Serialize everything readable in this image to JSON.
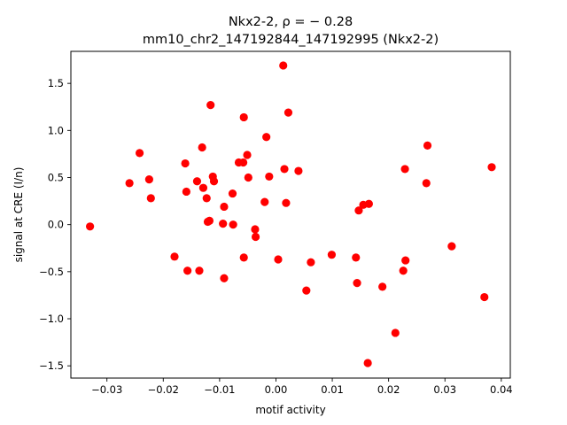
{
  "chart_data": {
    "type": "scatter",
    "title_line1": "Nkx2-2, ρ = − 0.28",
    "title_line2": "mm10_chr2_147192844_147192995 (Nkx2-2)",
    "xlabel": "motif activity",
    "ylabel": "signal at CRE (I/n)",
    "xlim": [
      -0.0364,
      0.0416
    ],
    "ylim": [
      -1.63,
      1.84
    ],
    "xticks": [
      -0.03,
      -0.02,
      -0.01,
      0.0,
      0.01,
      0.02,
      0.03,
      0.04
    ],
    "xtick_labels": [
      "−0.03",
      "−0.02",
      "−0.01",
      "0.00",
      "0.01",
      "0.02",
      "0.03",
      "0.04"
    ],
    "yticks": [
      -1.5,
      -1.0,
      -0.5,
      0.0,
      0.5,
      1.0,
      1.5
    ],
    "ytick_labels": [
      "−1.5",
      "−1.0",
      "−0.5",
      "0.0",
      "0.5",
      "1.0",
      "1.5"
    ],
    "grid": false,
    "legend": "none",
    "marker_color": "#ff0000",
    "points": [
      {
        "x": -0.033,
        "y": -0.02
      },
      {
        "x": -0.026,
        "y": 0.44
      },
      {
        "x": -0.0242,
        "y": 0.76
      },
      {
        "x": -0.0225,
        "y": 0.48
      },
      {
        "x": -0.0222,
        "y": 0.28
      },
      {
        "x": -0.018,
        "y": -0.34
      },
      {
        "x": -0.0161,
        "y": 0.65
      },
      {
        "x": -0.0159,
        "y": 0.35
      },
      {
        "x": -0.0157,
        "y": -0.49
      },
      {
        "x": -0.014,
        "y": 0.46
      },
      {
        "x": -0.0136,
        "y": -0.49
      },
      {
        "x": -0.0131,
        "y": 0.82
      },
      {
        "x": -0.0129,
        "y": 0.39
      },
      {
        "x": -0.0123,
        "y": 0.28
      },
      {
        "x": -0.0121,
        "y": 0.03
      },
      {
        "x": -0.0118,
        "y": 0.04
      },
      {
        "x": -0.0116,
        "y": 1.27
      },
      {
        "x": -0.0112,
        "y": 0.51
      },
      {
        "x": -0.011,
        "y": 0.46
      },
      {
        "x": -0.0094,
        "y": 0.01
      },
      {
        "x": -0.0092,
        "y": 0.19
      },
      {
        "x": -0.0092,
        "y": -0.57
      },
      {
        "x": -0.0077,
        "y": 0.33
      },
      {
        "x": -0.0076,
        "y": 0.0
      },
      {
        "x": -0.0066,
        "y": 0.66
      },
      {
        "x": -0.0058,
        "y": 0.66
      },
      {
        "x": -0.0057,
        "y": 1.14
      },
      {
        "x": -0.0057,
        "y": -0.35
      },
      {
        "x": -0.0051,
        "y": 0.74
      },
      {
        "x": -0.0049,
        "y": 0.5
      },
      {
        "x": -0.0037,
        "y": -0.05
      },
      {
        "x": -0.0036,
        "y": -0.13
      },
      {
        "x": -0.002,
        "y": 0.24
      },
      {
        "x": -0.0017,
        "y": 0.93
      },
      {
        "x": -0.0012,
        "y": 0.51
      },
      {
        "x": 0.0004,
        "y": -0.37
      },
      {
        "x": 0.0013,
        "y": 1.69
      },
      {
        "x": 0.0015,
        "y": 0.59
      },
      {
        "x": 0.0018,
        "y": 0.23
      },
      {
        "x": 0.0022,
        "y": 1.19
      },
      {
        "x": 0.004,
        "y": 0.57
      },
      {
        "x": 0.0054,
        "y": -0.7
      },
      {
        "x": 0.0062,
        "y": -0.4
      },
      {
        "x": 0.0099,
        "y": -0.32
      },
      {
        "x": 0.0142,
        "y": -0.35
      },
      {
        "x": 0.0144,
        "y": -0.62
      },
      {
        "x": 0.0147,
        "y": 0.15
      },
      {
        "x": 0.0155,
        "y": 0.21
      },
      {
        "x": 0.0163,
        "y": -1.47
      },
      {
        "x": 0.0165,
        "y": 0.22
      },
      {
        "x": 0.0189,
        "y": -0.66
      },
      {
        "x": 0.0212,
        "y": -1.15
      },
      {
        "x": 0.0226,
        "y": -0.49
      },
      {
        "x": 0.0229,
        "y": 0.59
      },
      {
        "x": 0.023,
        "y": -0.38
      },
      {
        "x": 0.0267,
        "y": 0.44
      },
      {
        "x": 0.0269,
        "y": 0.84
      },
      {
        "x": 0.0312,
        "y": -0.23
      },
      {
        "x": 0.037,
        "y": -0.77
      },
      {
        "x": 0.0383,
        "y": 0.61
      }
    ]
  }
}
